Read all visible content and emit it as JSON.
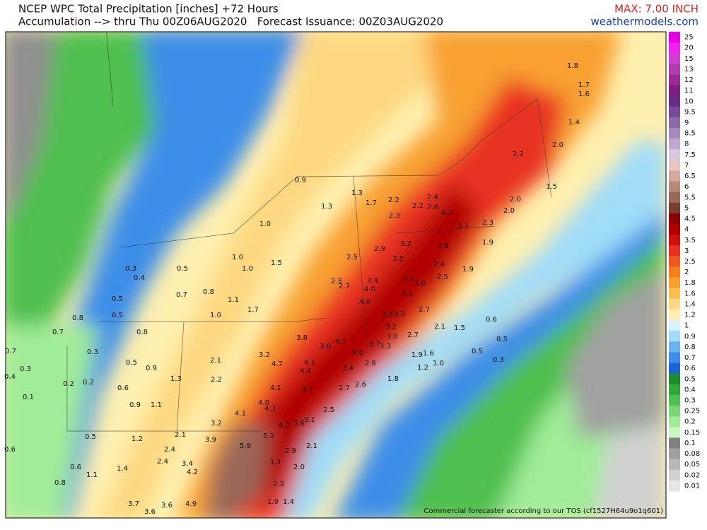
{
  "header": {
    "title_line1": "NCEP WPC Total Precipitation [inches] +72 Hours",
    "title_line2": "Accumulation --> thru Thu 00Z06AUG2020   Forecast Issuance: 00Z03AUG2020",
    "max": "MAX: 7.00 INCH",
    "site": "weathermodels.com"
  },
  "colorbar": {
    "levels": [
      "25",
      "20",
      "15",
      "13",
      "12",
      "11",
      "10",
      "9.5",
      "9",
      "8.5",
      "8",
      "7.5",
      "7",
      "6.5",
      "6",
      "5.5",
      "5",
      "4.5",
      "4",
      "3.5",
      "3",
      "2.5",
      "2",
      "1.8",
      "1.6",
      "1.4",
      "1.2",
      "1",
      "0.9",
      "0.8",
      "0.7",
      "0.6",
      "0.5",
      "0.4",
      "0.3",
      "0.25",
      "0.2",
      "0.15",
      "0.1",
      "0.08",
      "0.05",
      "0.02",
      "0.01"
    ],
    "colors": [
      "#e600e6",
      "#f020f0",
      "#d040d0",
      "#b03cb0",
      "#9a2a9a",
      "#7f1f7f",
      "#6a2a8a",
      "#7a4a9a",
      "#8f6aaa",
      "#a58abd",
      "#c0a8d0",
      "#d8c8e0",
      "#e6c8c0",
      "#d4a89a",
      "#b88878",
      "#9a6858",
      "#7a3e30",
      "#8b0000",
      "#b00000",
      "#d01010",
      "#e83020",
      "#f05a20",
      "#f57f20",
      "#f8a030",
      "#fbc050",
      "#fdd880",
      "#fff0b0",
      "#d8f4ff",
      "#a0dcf8",
      "#6ab4f0",
      "#3c8ee8",
      "#1e64d8",
      "#1e8c28",
      "#30a83a",
      "#50c050",
      "#78d878",
      "#a0ec98",
      "#c8f8c0",
      "#808080",
      "#a0a0a0",
      "#b8b8b8",
      "#d0d0d0",
      "#e6e6e6"
    ]
  },
  "map_labels": [
    "0.9",
    "1.3",
    "1.3",
    "1.7",
    "2.2",
    "2.2",
    "2.4",
    "2.3",
    "2.6",
    "6.2",
    "2.0",
    "2.0",
    "1.5",
    "2.2",
    "2.0",
    "1.4",
    "1.7",
    "1.6",
    "1.8",
    "3.1",
    "2.3",
    "1.9",
    "2.8",
    "3.2",
    "2.9",
    "3.5",
    "2.5",
    "2.4",
    "1.9",
    "2.5",
    "3.1",
    "3.0",
    "3.4",
    "2.5",
    "2.7",
    "4.0",
    "3.1",
    "2.7",
    "4.0",
    "3.5",
    "3.3",
    "3.2",
    "3.0",
    "2.7",
    "2.1",
    "3.8",
    "3.8",
    "3.7",
    "4.0",
    "3.7",
    "3.3",
    "1.9",
    "1.6",
    "1.2",
    "1.0",
    "1.0",
    "1.0",
    "1.0",
    "1.5",
    "1.7",
    "1.0",
    "1.1",
    "0.8",
    "0.7",
    "0.5",
    "0.3",
    "0.4",
    "0.5",
    "0.5",
    "0.8",
    "0.8",
    "0.7",
    "0.3",
    "0.5",
    "0.9",
    "1.3",
    "2.1",
    "2.2",
    "3.2",
    "4.7",
    "4.4",
    "4.1",
    "3.4",
    "2.8",
    "1.8",
    "2.6",
    "4.1",
    "4.1",
    "2.7",
    "4.0",
    "4.3",
    "4.1",
    "3.1",
    "2.5",
    "3.6",
    "4.0",
    "3.2",
    "2.1",
    "3.9",
    "5.3",
    "5.9",
    "2.4",
    "2.9",
    "2.1",
    "3.4",
    "3.3",
    "4.2",
    "2.0",
    "2.4",
    "1.4",
    "1.1",
    "0.6",
    "0.5",
    "0.8",
    "0.6",
    "1.2",
    "3.7",
    "3.6",
    "3.6",
    "4.9",
    "2.3",
    "1.9",
    "1.4",
    "0.9",
    "1.1",
    "0.6",
    "0.2",
    "0.2",
    "0.1",
    "0.3",
    "0.4",
    "0.7",
    "0.6",
    "0.5",
    "0.3",
    "1.5",
    "0.5"
  ],
  "footer": "Commercial forecaster according to our TOS (cf1527H64u9o1q601)"
}
